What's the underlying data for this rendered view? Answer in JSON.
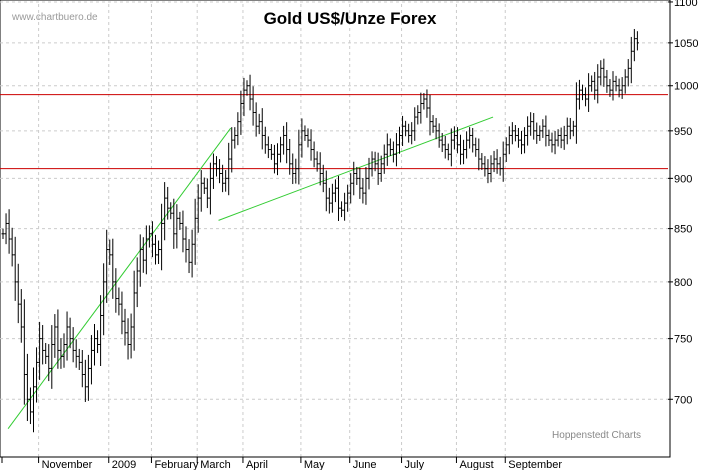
{
  "chart_data": {
    "type": "bar",
    "subtype": "ohlc",
    "title": "Gold US$/Unze Forex",
    "watermark": "www.chartbuero.de",
    "credit": "Hoppenstedt Charts",
    "y_axis": {
      "position": "right",
      "scale": "log",
      "ticks": [
        700,
        750,
        800,
        850,
        900,
        950,
        1000,
        1050,
        1100
      ],
      "ylim": [
        660,
        1110
      ]
    },
    "x_axis": {
      "months": [
        "November",
        "2009",
        "February",
        "March",
        "April",
        "May",
        "June",
        "July",
        "August",
        "September"
      ]
    },
    "horizontal_lines": [
      {
        "value": 990,
        "color": "#cc0000"
      },
      {
        "value": 910,
        "color": "#cc0000"
      }
    ],
    "trendlines": [
      {
        "color": "#33cc33",
        "from": {
          "t": 2.0,
          "v": 677
        },
        "to": {
          "t": 75.0,
          "v": 953
        }
      },
      {
        "color": "#33cc33",
        "from": {
          "t": 71.0,
          "v": 858
        },
        "to": {
          "t": 161.0,
          "v": 965
        }
      }
    ],
    "series": [
      {
        "start_index": 0,
        "close": [
          845,
          855,
          840,
          825,
          800,
          780,
          760,
          720,
          700,
          690,
          710,
          730,
          750,
          740,
          735,
          725,
          745,
          760,
          740,
          735,
          745,
          760,
          750,
          740,
          735,
          730,
          720,
          710,
          725,
          740,
          750,
          745,
          770,
          800,
          830,
          825,
          800,
          785,
          780,
          765,
          755,
          745,
          760,
          790,
          810,
          830,
          820,
          840,
          845,
          835,
          825,
          830,
          855,
          880,
          870,
          865,
          845,
          860,
          855,
          840,
          830,
          818,
          835,
          860,
          880,
          895,
          890,
          880,
          900,
          915,
          910,
          905,
          895,
          900,
          920,
          940,
          945,
          960,
          980,
          995,
          1000,
          985,
          970,
          955,
          960,
          945,
          935,
          930,
          925,
          915,
          925,
          935,
          945,
          930,
          915,
          905,
          910,
          935,
          950,
          945,
          940,
          930,
          920,
          915,
          905,
          895,
          880,
          875,
          885,
          890,
          870,
          868,
          875,
          885,
          895,
          905,
          900,
          890,
          885,
          900,
          910,
          920,
          915,
          905,
          915,
          925,
          935,
          930,
          925,
          935,
          945,
          955,
          950,
          945,
          950,
          965,
          970,
          980,
          985,
          975,
          960,
          955,
          950,
          940,
          935,
          930,
          925,
          940,
          945,
          935,
          925,
          930,
          940,
          945,
          935,
          930,
          920,
          915,
          910,
          905,
          915,
          920,
          915,
          910,
          925,
          935,
          945,
          950,
          945,
          940,
          935,
          945,
          955,
          960,
          950,
          945,
          950,
          955,
          945,
          940,
          935,
          940,
          945,
          940,
          945,
          955,
          950,
          955,
          985,
          995,
          990,
          985,
          1000,
          1005,
          995,
          1010,
          1020,
          1010,
          1000,
          995,
          1005,
          1000,
          995,
          1000,
          1010,
          1020,
          1040,
          1055,
          1050
        ]
      }
    ]
  }
}
